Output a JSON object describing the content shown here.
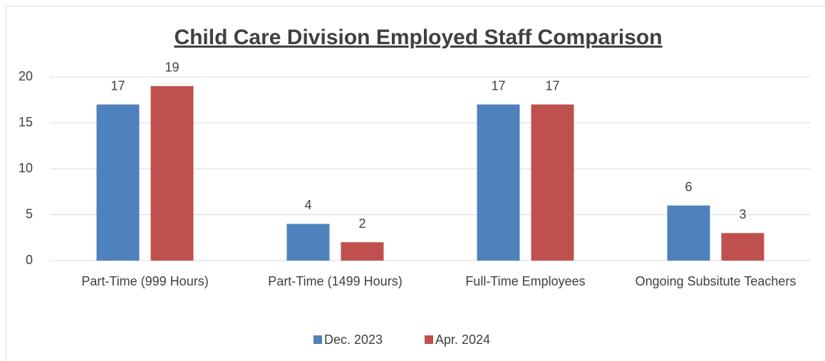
{
  "chart_data": {
    "type": "bar",
    "title": "Child Care Division Employed Staff Comparison",
    "categories": [
      "Part-Time (999 Hours)",
      "Part-Time (1499 Hours)",
      "Full-Time Employees",
      "Ongoing Subsitute Teachers"
    ],
    "series": [
      {
        "name": "Dec. 2023",
        "color": "#4f81bd",
        "values": [
          17,
          4,
          17,
          6
        ]
      },
      {
        "name": "Apr. 2024",
        "color": "#c0504d",
        "values": [
          19,
          2,
          17,
          3
        ]
      }
    ],
    "ylim": [
      0,
      20
    ],
    "yticks": [
      0,
      5,
      10,
      15,
      20
    ],
    "grid": true,
    "legend": "bottom"
  }
}
